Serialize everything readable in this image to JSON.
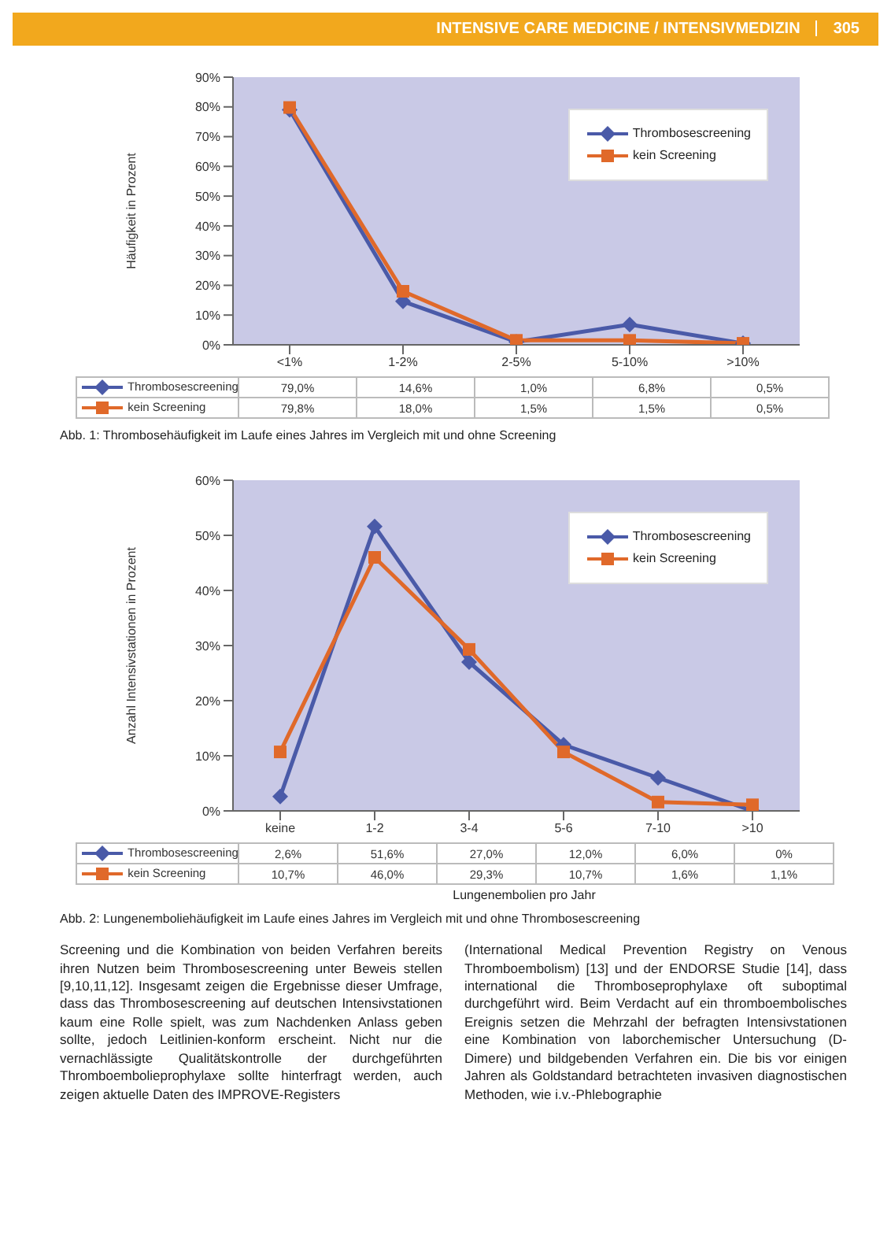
{
  "chart_data": [
    {
      "type": "line",
      "title": null,
      "ylabel": "Häufigkeit in Prozent",
      "categories": [
        "<1%",
        "1-2%",
        "2-5%",
        "5-10%",
        ">10%"
      ],
      "series": [
        {
          "name": "Thrombosescreening",
          "color": "#4a5aa8",
          "marker": "diamond",
          "values": [
            79.0,
            14.6,
            1.0,
            6.8,
            0.5
          ],
          "value_labels": [
            "79,0%",
            "14,6%",
            "1,0%",
            "6,8%",
            "0,5%"
          ]
        },
        {
          "name": "kein Screening",
          "color": "#e0692a",
          "marker": "square",
          "values": [
            79.8,
            18.0,
            1.5,
            1.5,
            0.5
          ],
          "value_labels": [
            "79,8%",
            "18,0%",
            "1,5%",
            "1,5%",
            "0,5%"
          ]
        }
      ],
      "ylim": [
        0,
        90
      ],
      "yticks": [
        {
          "value": 0,
          "label": "0%"
        },
        {
          "value": 10,
          "label": "10%"
        },
        {
          "value": 20,
          "label": "20%"
        },
        {
          "value": 30,
          "label": "30%"
        },
        {
          "value": 40,
          "label": "40%"
        },
        {
          "value": 50,
          "label": "50%"
        },
        {
          "value": 60,
          "label": "60%"
        },
        {
          "value": 70,
          "label": "70%"
        },
        {
          "value": 80,
          "label": "80%"
        },
        {
          "value": 90,
          "label": "90%"
        }
      ],
      "legend": "top right",
      "grid": false,
      "annotations": [
        "INTENSIVE CARE MEDICINE / INTENSIVMEDIZIN",
        "305",
        "Abb. 1: Thrombosehäufigkeit im Laufe eines Jahres im Vergleich mit und ohne Screening"
      ]
    },
    {
      "type": "line",
      "ylabel": "Anzahl Intensivstationen in Prozent",
      "xlabel": "Lungenembolien pro Jahr",
      "categories": [
        "keine",
        "1-2",
        "3-4",
        "5-6",
        "7-10",
        ">10"
      ],
      "series": [
        {
          "name": "Thrombosescreening",
          "color": "#4a5aa8",
          "marker": "diamond",
          "values": [
            2.6,
            51.6,
            27.0,
            12.0,
            6.0,
            0.0
          ],
          "value_labels": [
            "2,6%",
            "51,6%",
            "27,0%",
            "12,0%",
            "6,0%",
            "0%"
          ]
        },
        {
          "name": "kein Screening",
          "color": "#e0692a",
          "marker": "square",
          "values": [
            10.7,
            46.0,
            29.3,
            10.7,
            1.6,
            1.1
          ],
          "value_labels": [
            "10,7%",
            "46,0%",
            "29,3%",
            "10,7%",
            "1,6%",
            "1,1%"
          ]
        }
      ],
      "ylim": [
        0,
        60
      ],
      "yticks": [
        {
          "value": 0,
          "label": "0%"
        },
        {
          "value": 10,
          "label": "10%"
        },
        {
          "value": 20,
          "label": "20%"
        },
        {
          "value": 30,
          "label": "30%"
        },
        {
          "value": 40,
          "label": "40%"
        },
        {
          "value": 50,
          "label": "50%"
        },
        {
          "value": 60,
          "label": "60%"
        }
      ],
      "legend": "top right",
      "grid": false,
      "annotations": [
        "Abb. 2: Lungenemboliehäufigkeit im Laufe eines Jahres im Vergleich mit und ohne Thrombosescreening",
        "Screening und die Kombination von beiden Verfahren bereits ihren Nutzen beim Thrombosescreening unter Beweis stellen [9,10,11,12]. Insgesamt zeigen die Ergebnisse dieser Umfrage, dass das Thrombosescreening auf deutschen Intensivstationen kaum eine Rolle spielt, was zum Nachdenken Anlass geben sollte, jedoch Leitlinien-konform erscheint. Nicht nur die vernachlässigte Qualitätskontrolle der durchgeführten Thromboembolieprophylaxe sollte hinterfragt werden, auch zeigen aktuelle Daten des IMPROVE-Registers",
        "(International Medical Prevention Registry on Venous Thromboembolism) [13] und der ENDORSE Studie [14], dass international die Thromboseprophylaxe oft suboptimal durchgeführt wird. Beim Verdacht auf ein thromboembolisches Ereignis setzen die Mehrzahl der befragten Intensivstationen eine Kombination von laborchemischer Untersuchung (D-Dimere) und bildgebenden Verfahren ein. Die bis vor einigen Jahren als Goldstandard betrachteten invasiven diagnostischen Methoden, wie i.v.-Phlebographie"
      ]
    }
  ]
}
